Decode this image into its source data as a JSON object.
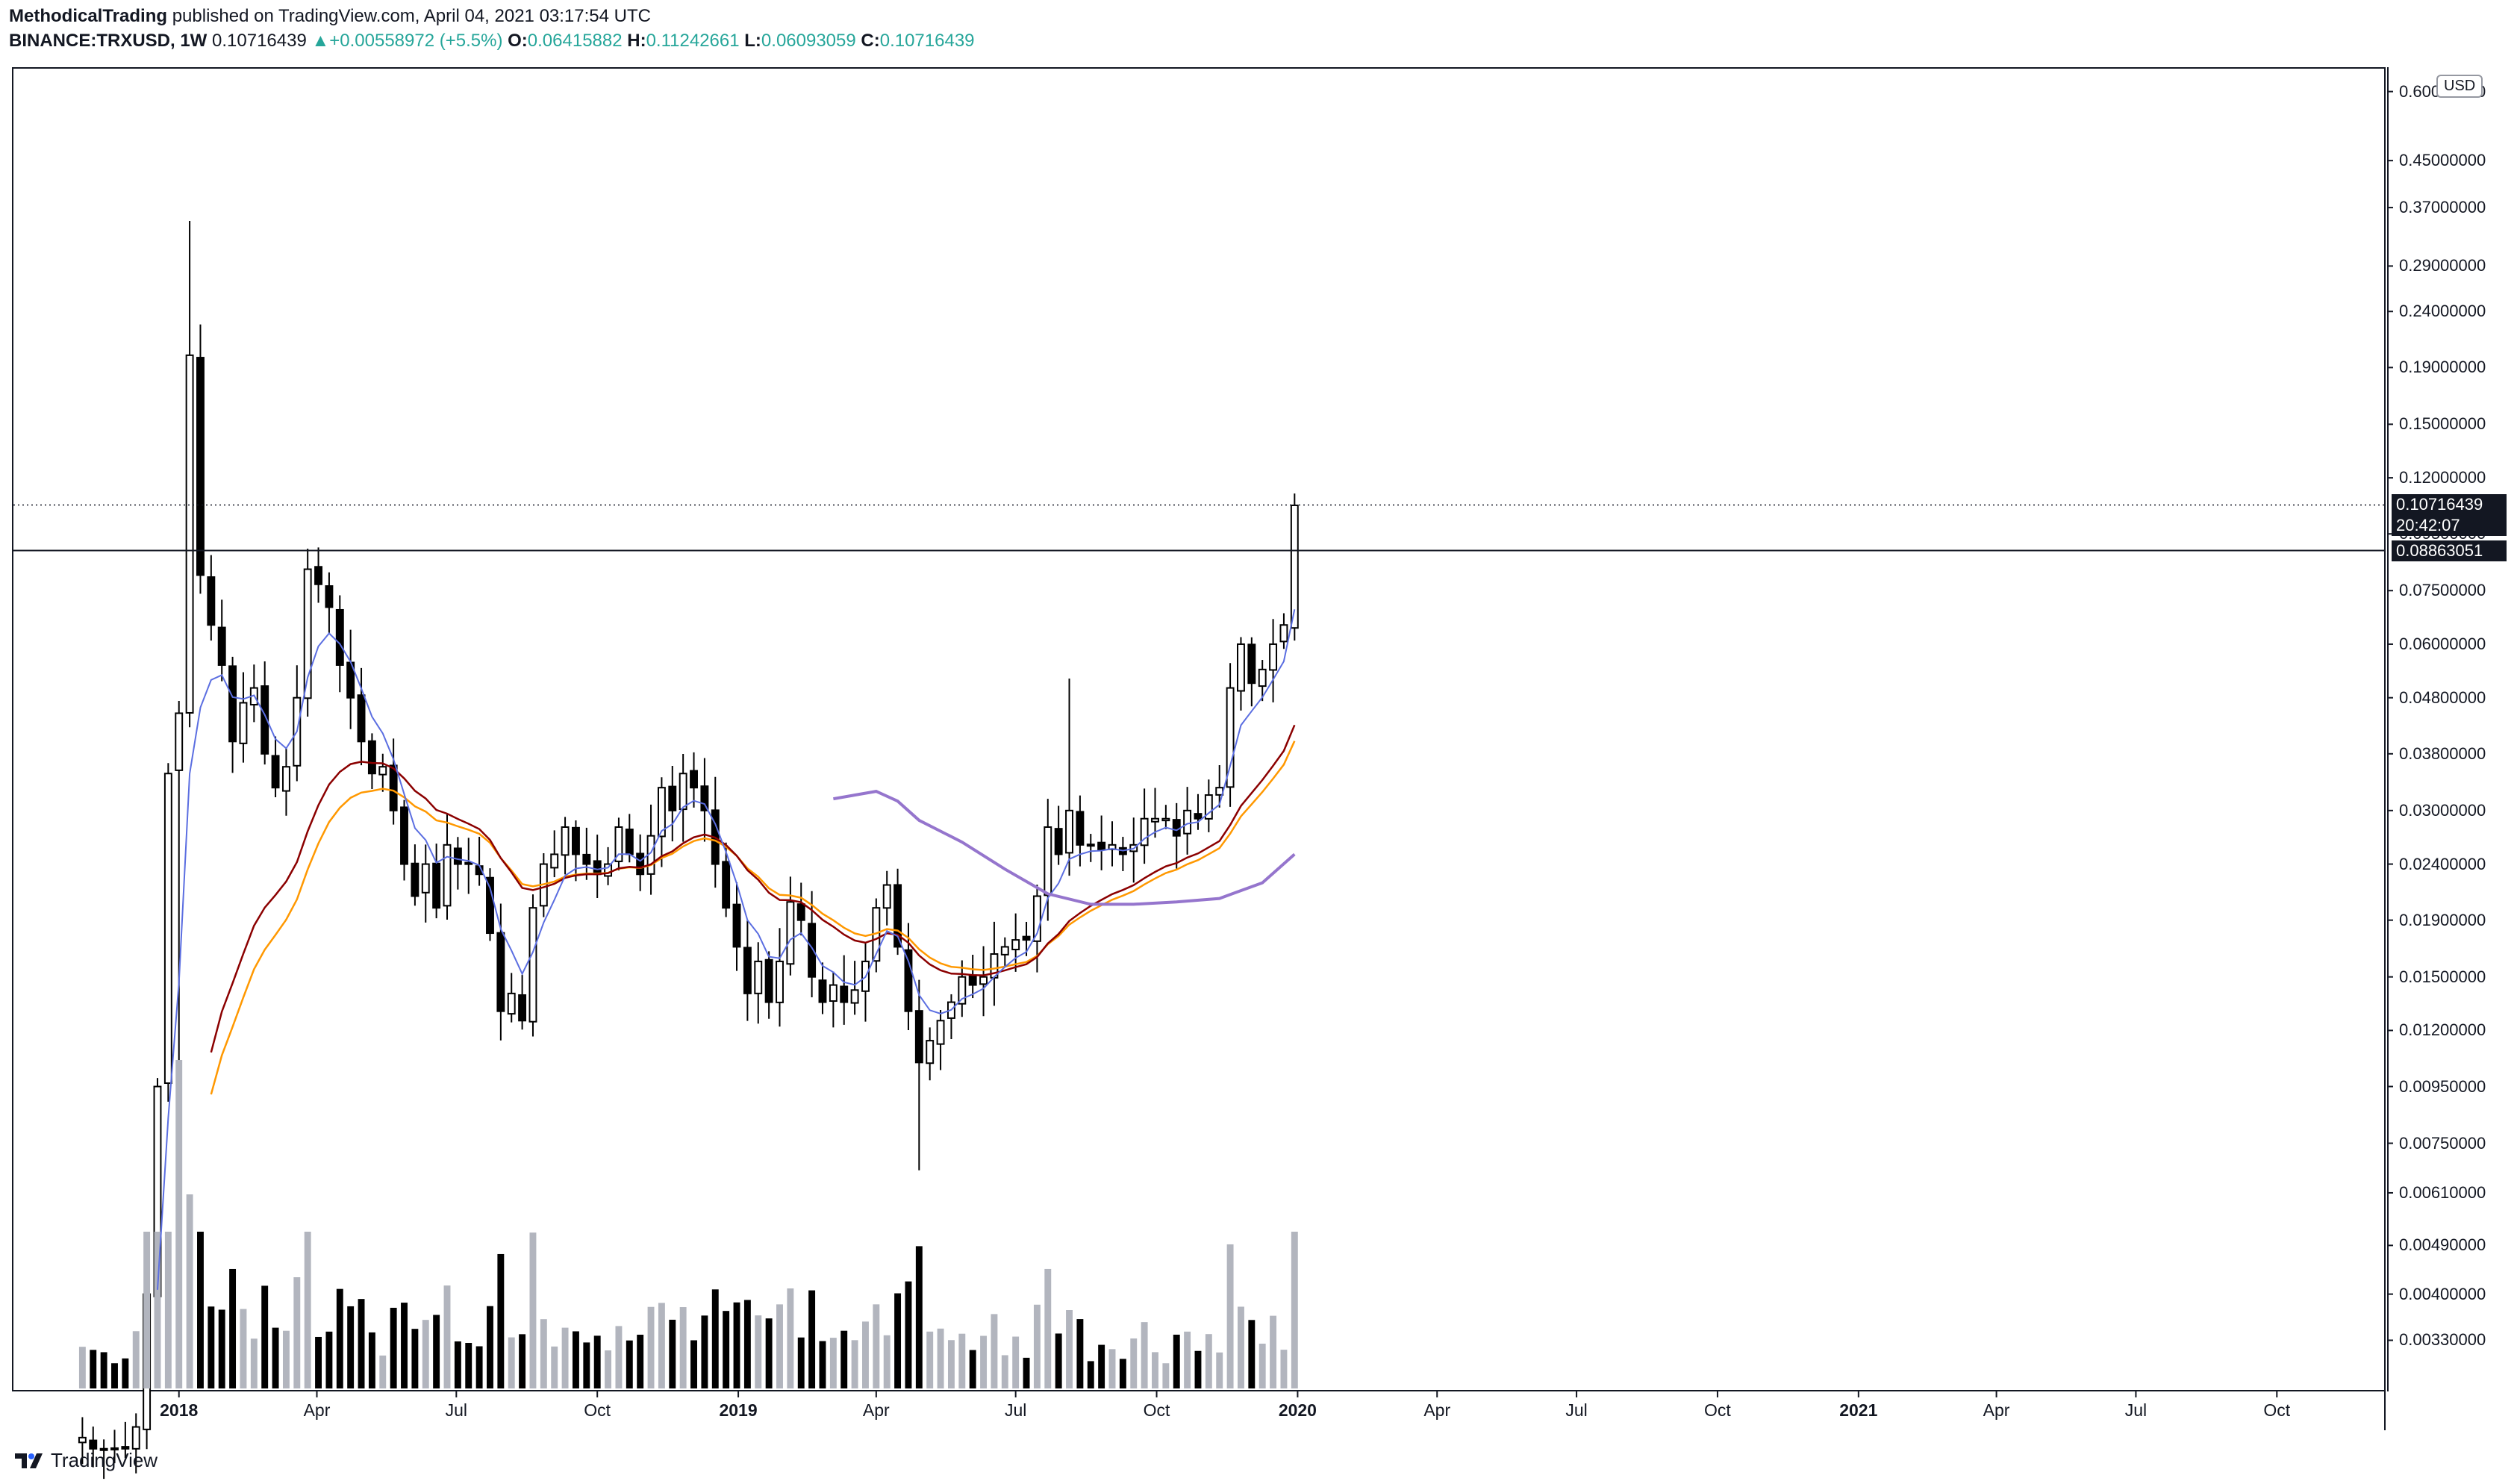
{
  "header": {
    "author": "MethodicalTrading",
    "published": "published on TradingView.com, April 04, 2021 03:17:54 UTC",
    "symbol": "BINANCE:TRXUSD, 1W",
    "last": "0.10716439",
    "change": "+0.00558972 (+5.5%)",
    "o_label": "O:",
    "o": "0.06415882",
    "h_label": "H:",
    "h": "0.11242661",
    "l_label": "L:",
    "l": "0.06093059",
    "c_label": "C:",
    "c": "0.10716439"
  },
  "currency_label": "USD",
  "price_badges": {
    "last_price": "0.10716439",
    "countdown": "20:42:07",
    "hline_price": "0.08863051"
  },
  "footer": {
    "brand": "TradingView"
  },
  "colors": {
    "bull_candle": "#ffffff",
    "bear_candle": "#000000",
    "volume_bull": "#b2b5be",
    "volume_bear": "#000000",
    "ema_fast": "#5b6ee1",
    "ema_mid": "#8b0000",
    "ema_slow": "#ff9800",
    "ma_long": "#9575cd"
  },
  "chart_data": {
    "type": "candlestick",
    "scale": "log",
    "ylim": [
      0.0027,
      0.66
    ],
    "y_ticks": [
      "0.60000000",
      "0.45000000",
      "0.37000000",
      "0.29000000",
      "0.24000000",
      "0.19000000",
      "0.15000000",
      "0.12000000",
      "0.09500000",
      "0.07500000",
      "0.06000000",
      "0.04800000",
      "0.03800000",
      "0.03000000",
      "0.02400000",
      "0.01900000",
      "0.01500000",
      "0.01200000",
      "0.00950000",
      "0.00750000",
      "0.00610000",
      "0.00490000",
      "0.00400000",
      "0.00330000"
    ],
    "x_ticks": [
      {
        "label": "2018",
        "date": "2018-01-01",
        "bold": true
      },
      {
        "label": "Apr",
        "date": "2018-04-01",
        "bold": false
      },
      {
        "label": "Jul",
        "date": "2018-07-01",
        "bold": false
      },
      {
        "label": "Oct",
        "date": "2018-10-01",
        "bold": false
      },
      {
        "label": "2019",
        "date": "2019-01-01",
        "bold": true
      },
      {
        "label": "Apr",
        "date": "2019-04-01",
        "bold": false
      },
      {
        "label": "Jul",
        "date": "2019-07-01",
        "bold": false
      },
      {
        "label": "Oct",
        "date": "2019-10-01",
        "bold": false
      },
      {
        "label": "2020",
        "date": "2020-01-01",
        "bold": true
      },
      {
        "label": "Apr",
        "date": "2020-04-01",
        "bold": false
      },
      {
        "label": "Jul",
        "date": "2020-07-01",
        "bold": false
      },
      {
        "label": "Oct",
        "date": "2020-10-01",
        "bold": false
      },
      {
        "label": "2021",
        "date": "2021-01-01",
        "bold": true
      },
      {
        "label": "Apr",
        "date": "2021-04-01",
        "bold": false
      },
      {
        "label": "Jul",
        "date": "2021-07-01",
        "bold": false
      },
      {
        "label": "Oct",
        "date": "2021-10-01",
        "bold": false
      }
    ],
    "x_range": [
      "2017-09-15",
      "2021-12-10"
    ],
    "first_candle": "2017-10-30",
    "interval_days": 7,
    "horizontal_line": 0.08863051,
    "last_price": 0.10716439,
    "anchors": [
      {
        "i": 0,
        "c": 0.0022
      },
      {
        "i": 1,
        "c": 0.0021
      },
      {
        "i": 2,
        "c": 0.0021
      },
      {
        "i": 3,
        "c": 0.0021
      },
      {
        "i": 4,
        "c": 0.0021
      },
      {
        "i": 5,
        "c": 0.0023
      },
      {
        "i": 6,
        "c": 0.004
      },
      {
        "i": 7,
        "c": 0.0095
      },
      {
        "i": 8,
        "c": 0.035
      },
      {
        "i": 9,
        "c": 0.045
      },
      {
        "i": 10,
        "c": 0.2
      },
      {
        "i": 11,
        "c": 0.08
      },
      {
        "i": 12,
        "c": 0.065
      },
      {
        "i": 13,
        "c": 0.055
      },
      {
        "i": 14,
        "c": 0.04
      },
      {
        "i": 15,
        "c": 0.047
      },
      {
        "i": 16,
        "c": 0.05
      },
      {
        "i": 17,
        "c": 0.038
      },
      {
        "i": 18,
        "c": 0.033
      },
      {
        "i": 19,
        "c": 0.036
      },
      {
        "i": 20,
        "c": 0.048
      },
      {
        "i": 21,
        "c": 0.082
      },
      {
        "i": 22,
        "c": 0.077
      },
      {
        "i": 23,
        "c": 0.07
      },
      {
        "i": 24,
        "c": 0.055
      },
      {
        "i": 25,
        "c": 0.048
      },
      {
        "i": 26,
        "c": 0.04
      },
      {
        "i": 27,
        "c": 0.035
      },
      {
        "i": 28,
        "c": 0.036
      },
      {
        "i": 29,
        "c": 0.03
      },
      {
        "i": 30,
        "c": 0.024
      },
      {
        "i": 31,
        "c": 0.021
      },
      {
        "i": 32,
        "c": 0.024
      },
      {
        "i": 33,
        "c": 0.02
      },
      {
        "i": 34,
        "c": 0.026
      },
      {
        "i": 35,
        "c": 0.024
      },
      {
        "i": 36,
        "c": 0.024
      },
      {
        "i": 37,
        "c": 0.023
      },
      {
        "i": 38,
        "c": 0.018
      },
      {
        "i": 39,
        "c": 0.013
      },
      {
        "i": 40,
        "c": 0.014
      },
      {
        "i": 41,
        "c": 0.0125
      },
      {
        "i": 42,
        "c": 0.02
      },
      {
        "i": 43,
        "c": 0.024
      },
      {
        "i": 44,
        "c": 0.025
      },
      {
        "i": 45,
        "c": 0.028
      },
      {
        "i": 46,
        "c": 0.025
      },
      {
        "i": 47,
        "c": 0.024
      },
      {
        "i": 48,
        "c": 0.023
      },
      {
        "i": 49,
        "c": 0.024
      },
      {
        "i": 50,
        "c": 0.028
      },
      {
        "i": 51,
        "c": 0.025
      },
      {
        "i": 52,
        "c": 0.023
      },
      {
        "i": 53,
        "c": 0.027
      },
      {
        "i": 54,
        "c": 0.033
      },
      {
        "i": 55,
        "c": 0.03
      },
      {
        "i": 56,
        "c": 0.035
      },
      {
        "i": 57,
        "c": 0.033
      },
      {
        "i": 58,
        "c": 0.03
      },
      {
        "i": 59,
        "c": 0.024
      },
      {
        "i": 60,
        "c": 0.02
      },
      {
        "i": 61,
        "c": 0.017
      },
      {
        "i": 62,
        "c": 0.014
      },
      {
        "i": 63,
        "c": 0.016
      },
      {
        "i": 64,
        "c": 0.0135
      },
      {
        "i": 65,
        "c": 0.016
      },
      {
        "i": 66,
        "c": 0.0205
      },
      {
        "i": 67,
        "c": 0.019
      },
      {
        "i": 68,
        "c": 0.015
      },
      {
        "i": 69,
        "c": 0.0135
      },
      {
        "i": 70,
        "c": 0.0145
      },
      {
        "i": 71,
        "c": 0.0135
      },
      {
        "i": 72,
        "c": 0.0142
      },
      {
        "i": 73,
        "c": 0.016
      },
      {
        "i": 74,
        "c": 0.02
      },
      {
        "i": 75,
        "c": 0.022
      },
      {
        "i": 76,
        "c": 0.017
      },
      {
        "i": 77,
        "c": 0.013
      },
      {
        "i": 78,
        "c": 0.0105
      },
      {
        "i": 79,
        "c": 0.0115
      },
      {
        "i": 80,
        "c": 0.0125
      },
      {
        "i": 81,
        "c": 0.0135
      },
      {
        "i": 82,
        "c": 0.015
      },
      {
        "i": 83,
        "c": 0.0145
      },
      {
        "i": 84,
        "c": 0.015
      },
      {
        "i": 85,
        "c": 0.0165
      },
      {
        "i": 86,
        "c": 0.017
      },
      {
        "i": 87,
        "c": 0.0175
      },
      {
        "i": 88,
        "c": 0.0175
      },
      {
        "i": 89,
        "c": 0.021
      },
      {
        "i": 90,
        "c": 0.028
      },
      {
        "i": 91,
        "c": 0.025
      },
      {
        "i": 92,
        "c": 0.03
      },
      {
        "i": 93,
        "c": 0.026
      },
      {
        "i": 94,
        "c": 0.026
      },
      {
        "i": 95,
        "c": 0.0255
      },
      {
        "i": 96,
        "c": 0.026
      },
      {
        "i": 97,
        "c": 0.025
      },
      {
        "i": 98,
        "c": 0.026
      },
      {
        "i": 99,
        "c": 0.029
      },
      {
        "i": 100,
        "c": 0.029
      },
      {
        "i": 101,
        "c": 0.029
      },
      {
        "i": 102,
        "c": 0.027
      },
      {
        "i": 103,
        "c": 0.03
      },
      {
        "i": 104,
        "c": 0.029
      },
      {
        "i": 105,
        "c": 0.032
      },
      {
        "i": 106,
        "c": 0.033
      },
      {
        "i": 107,
        "c": 0.05
      },
      {
        "i": 108,
        "c": 0.06
      },
      {
        "i": 109,
        "c": 0.051
      },
      {
        "i": 110,
        "c": 0.054
      },
      {
        "i": 111,
        "c": 0.06
      },
      {
        "i": 112,
        "c": 0.065
      },
      {
        "i": 113,
        "c": 0.107
      }
    ],
    "ma_long": [
      {
        "i": 70,
        "v": 0.0315
      },
      {
        "i": 74,
        "v": 0.0325
      },
      {
        "i": 76,
        "v": 0.0312
      },
      {
        "i": 78,
        "v": 0.0288
      },
      {
        "i": 82,
        "v": 0.0263
      },
      {
        "i": 86,
        "v": 0.0235
      },
      {
        "i": 90,
        "v": 0.0212
      },
      {
        "i": 94,
        "v": 0.0203
      },
      {
        "i": 98,
        "v": 0.0203
      },
      {
        "i": 102,
        "v": 0.0205
      },
      {
        "i": 106,
        "v": 0.0208
      },
      {
        "i": 110,
        "v": 0.0222
      },
      {
        "i": 113,
        "v": 0.025
      }
    ]
  }
}
